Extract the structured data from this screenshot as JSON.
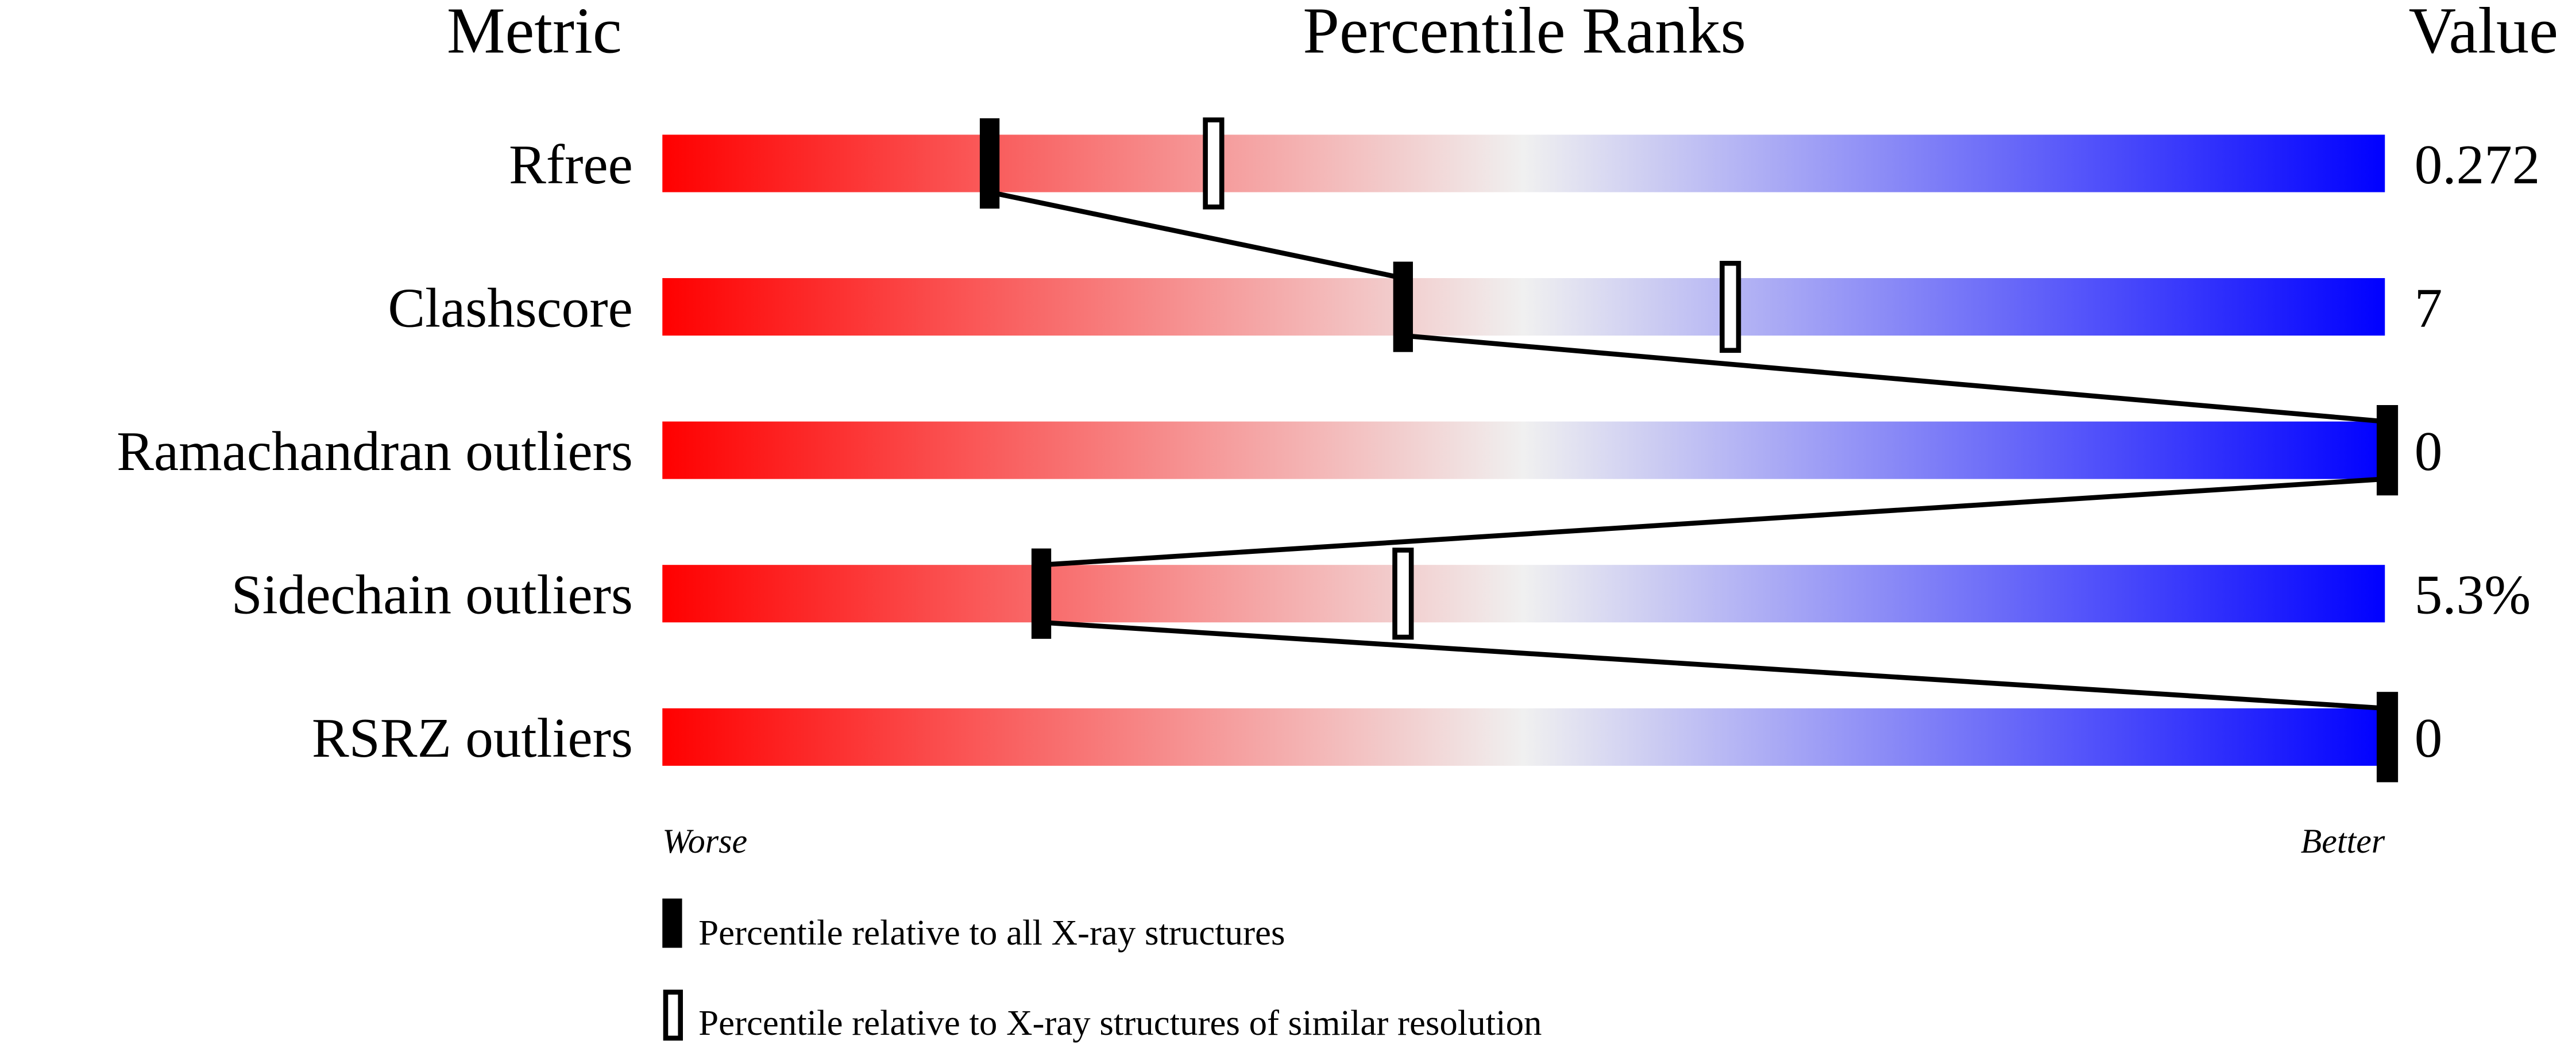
{
  "chart_data": {
    "type": "percentile-bar",
    "headers": {
      "metric": "Metric",
      "ranks": "Percentile Ranks",
      "value": "Value"
    },
    "xlim": [
      0,
      100
    ],
    "axis_labels": {
      "left": "Worse",
      "right": "Better"
    },
    "gradient_colors": [
      "#ff0000",
      "#f0f0f0",
      "#0000ff"
    ],
    "metrics": [
      {
        "name": "Rfree",
        "value": "0.272",
        "percentile_all": 19,
        "percentile_similar": 32
      },
      {
        "name": "Clashscore",
        "value": "7",
        "percentile_all": 43,
        "percentile_similar": 62
      },
      {
        "name": "Ramachandran outliers",
        "value": "0",
        "percentile_all": 100,
        "percentile_similar": null
      },
      {
        "name": "Sidechain outliers",
        "value": "5.3%",
        "percentile_all": 22,
        "percentile_similar": 43
      },
      {
        "name": "RSRZ outliers",
        "value": "0",
        "percentile_all": 100,
        "percentile_similar": null
      }
    ],
    "legend": [
      {
        "marker": "filled",
        "label": "Percentile relative to all X-ray structures"
      },
      {
        "marker": "open",
        "label": "Percentile relative to X-ray structures of similar resolution"
      }
    ]
  }
}
